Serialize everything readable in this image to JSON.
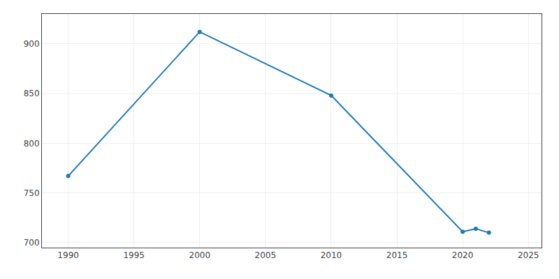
{
  "chart_data": {
    "type": "line",
    "x": [
      1990,
      2000,
      2010,
      2020,
      2021,
      2022
    ],
    "values": [
      767,
      912,
      848,
      711,
      714,
      710
    ],
    "marker": "circle",
    "xlim": [
      1988,
      2026
    ],
    "ylim": [
      695,
      930
    ],
    "xticks": [
      1990,
      1995,
      2000,
      2005,
      2010,
      2015,
      2020,
      2025
    ],
    "yticks": [
      700,
      750,
      800,
      850,
      900
    ],
    "grid": true
  }
}
